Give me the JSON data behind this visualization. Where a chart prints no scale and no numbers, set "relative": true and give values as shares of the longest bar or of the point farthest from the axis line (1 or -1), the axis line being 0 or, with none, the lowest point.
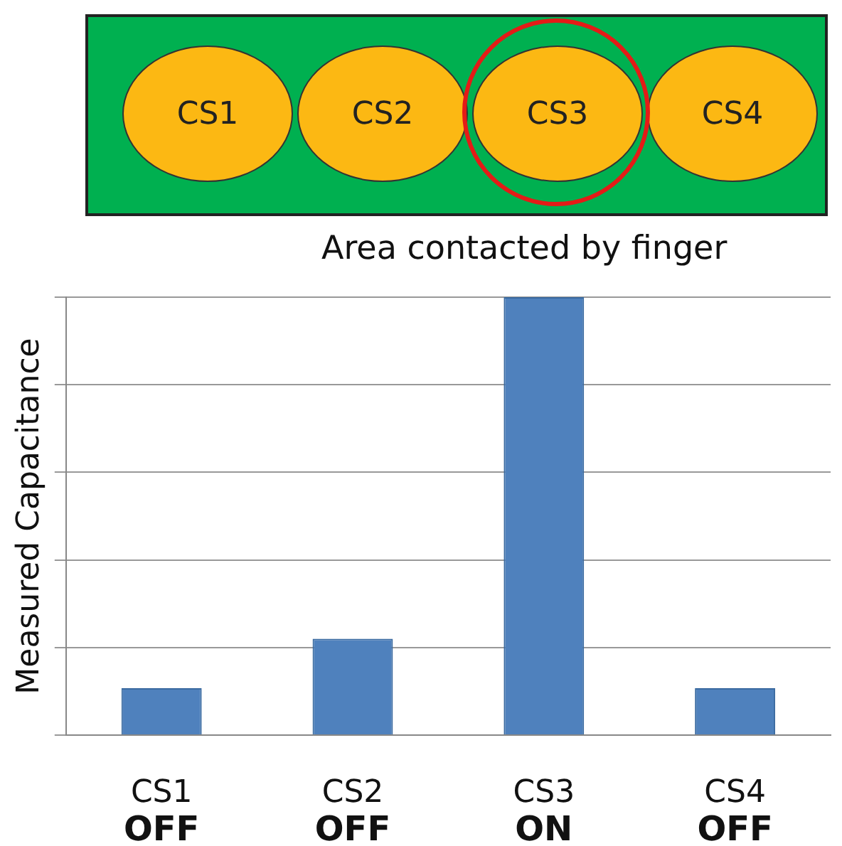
{
  "chart_data": {
    "type": "bar",
    "relative": true,
    "ylabel": "Measured Capacitance",
    "categories": [
      "CS1\nOFF",
      "CS2\nOFF",
      "CS3\nON",
      "CS4\nOFF"
    ],
    "values": [
      0.107,
      0.22,
      1,
      0.107
    ],
    "color": "#4f81bd",
    "grid": "y",
    "legend": false,
    "annotations": [
      "CS1",
      "CS2",
      "CS3",
      "CS4",
      "Area contacted by finger"
    ]
  }
}
